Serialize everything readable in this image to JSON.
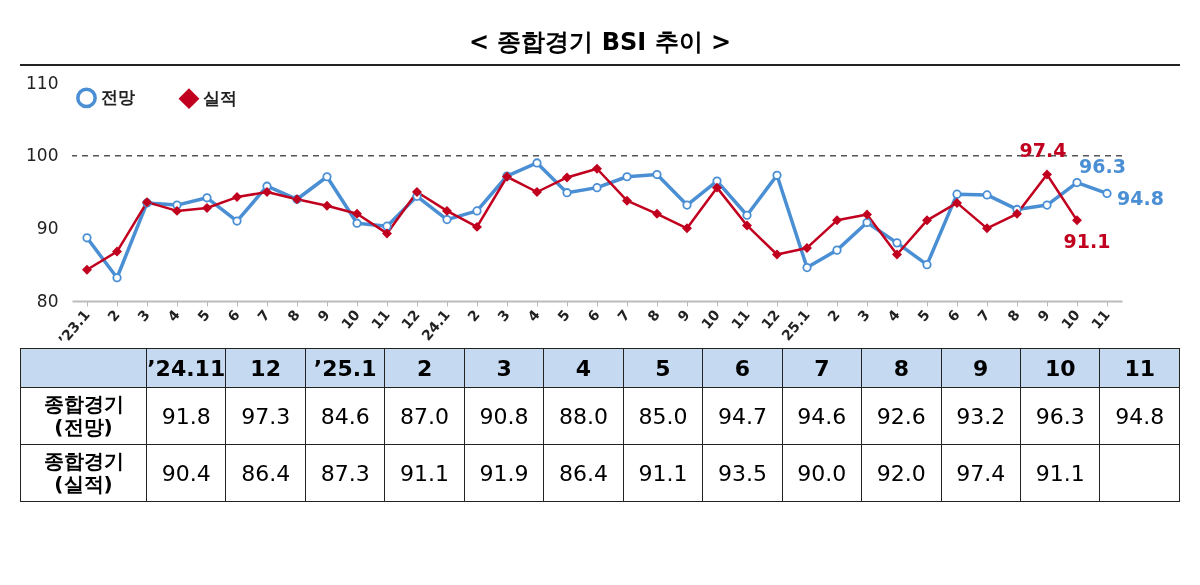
{
  "chart_data": {
    "type": "line",
    "title": "< 종합경기 BSI 추이 >",
    "categories": [
      "’23.1",
      "2",
      "3",
      "4",
      "5",
      "6",
      "7",
      "8",
      "9",
      "10",
      "11",
      "12",
      "24.1",
      "2",
      "3",
      "4",
      "5",
      "6",
      "7",
      "8",
      "9",
      "10",
      "11",
      "12",
      "25.1",
      "2",
      "3",
      "4",
      "5",
      "6",
      "7",
      "8",
      "9",
      "10",
      "11"
    ],
    "series": [
      {
        "name": "전망",
        "color": "#4a8fd4",
        "marker": "circle",
        "values": [
          88.7,
          83.2,
          93.5,
          93.2,
          94.2,
          91.0,
          95.8,
          94.0,
          97.1,
          90.7,
          90.3,
          94.4,
          91.2,
          92.4,
          97.2,
          99.0,
          94.9,
          95.6,
          97.1,
          97.4,
          93.2,
          96.5,
          91.8,
          97.3,
          84.6,
          87.0,
          90.8,
          88.0,
          85.0,
          94.7,
          94.6,
          92.6,
          93.2,
          96.3,
          94.8
        ],
        "value_labels": [
          null,
          null,
          null,
          null,
          null,
          null,
          null,
          null,
          null,
          null,
          null,
          null,
          null,
          null,
          null,
          null,
          null,
          null,
          null,
          null,
          null,
          null,
          null,
          null,
          null,
          null,
          null,
          null,
          null,
          null,
          null,
          null,
          null,
          "96.3",
          "94.8"
        ]
      },
      {
        "name": "실적",
        "color": "#c0001e",
        "marker": "diamond",
        "values": [
          84.3,
          86.8,
          93.6,
          92.4,
          92.8,
          94.3,
          95.0,
          94.0,
          93.1,
          92.0,
          89.3,
          95.0,
          92.4,
          90.2,
          97.1,
          95.0,
          97.0,
          98.2,
          93.8,
          92.0,
          90.0,
          95.6,
          90.4,
          86.4,
          87.3,
          91.1,
          91.9,
          86.4,
          91.1,
          93.5,
          90.0,
          92.0,
          97.4,
          91.1,
          null
        ],
        "value_labels": [
          null,
          null,
          null,
          null,
          null,
          null,
          null,
          null,
          null,
          null,
          null,
          null,
          null,
          null,
          null,
          null,
          null,
          null,
          null,
          null,
          null,
          null,
          null,
          null,
          null,
          null,
          null,
          null,
          null,
          null,
          null,
          null,
          "97.4",
          "91.1",
          null
        ]
      }
    ],
    "ylim": [
      80,
      110
    ],
    "yticks": [
      80,
      90,
      100,
      110
    ],
    "grid": false,
    "legend": "top left",
    "ref_lines": [
      {
        "axis": "y",
        "value": 100,
        "color": "#555555",
        "line_style": "dashed"
      }
    ],
    "annotations": [
      "’24.11",
      "12",
      "’25.1",
      "2",
      "3",
      "4",
      "5",
      "6",
      "7",
      "8",
      "9",
      "10",
      "11",
      "종합경기 (전망)",
      "91.8",
      "97.3",
      "84.6",
      "87.0",
      "90.8",
      "88.0",
      "85.0",
      "94.7",
      "94.6",
      "92.6",
      "93.2",
      "96.3",
      "94.8",
      "종합경기 (실적)",
      "90.4",
      "86.4",
      "87.3",
      "91.1",
      "91.9",
      "86.4",
      "91.1",
      "93.5",
      "90.0",
      "92.0",
      "97.4",
      "91.1"
    ]
  }
}
